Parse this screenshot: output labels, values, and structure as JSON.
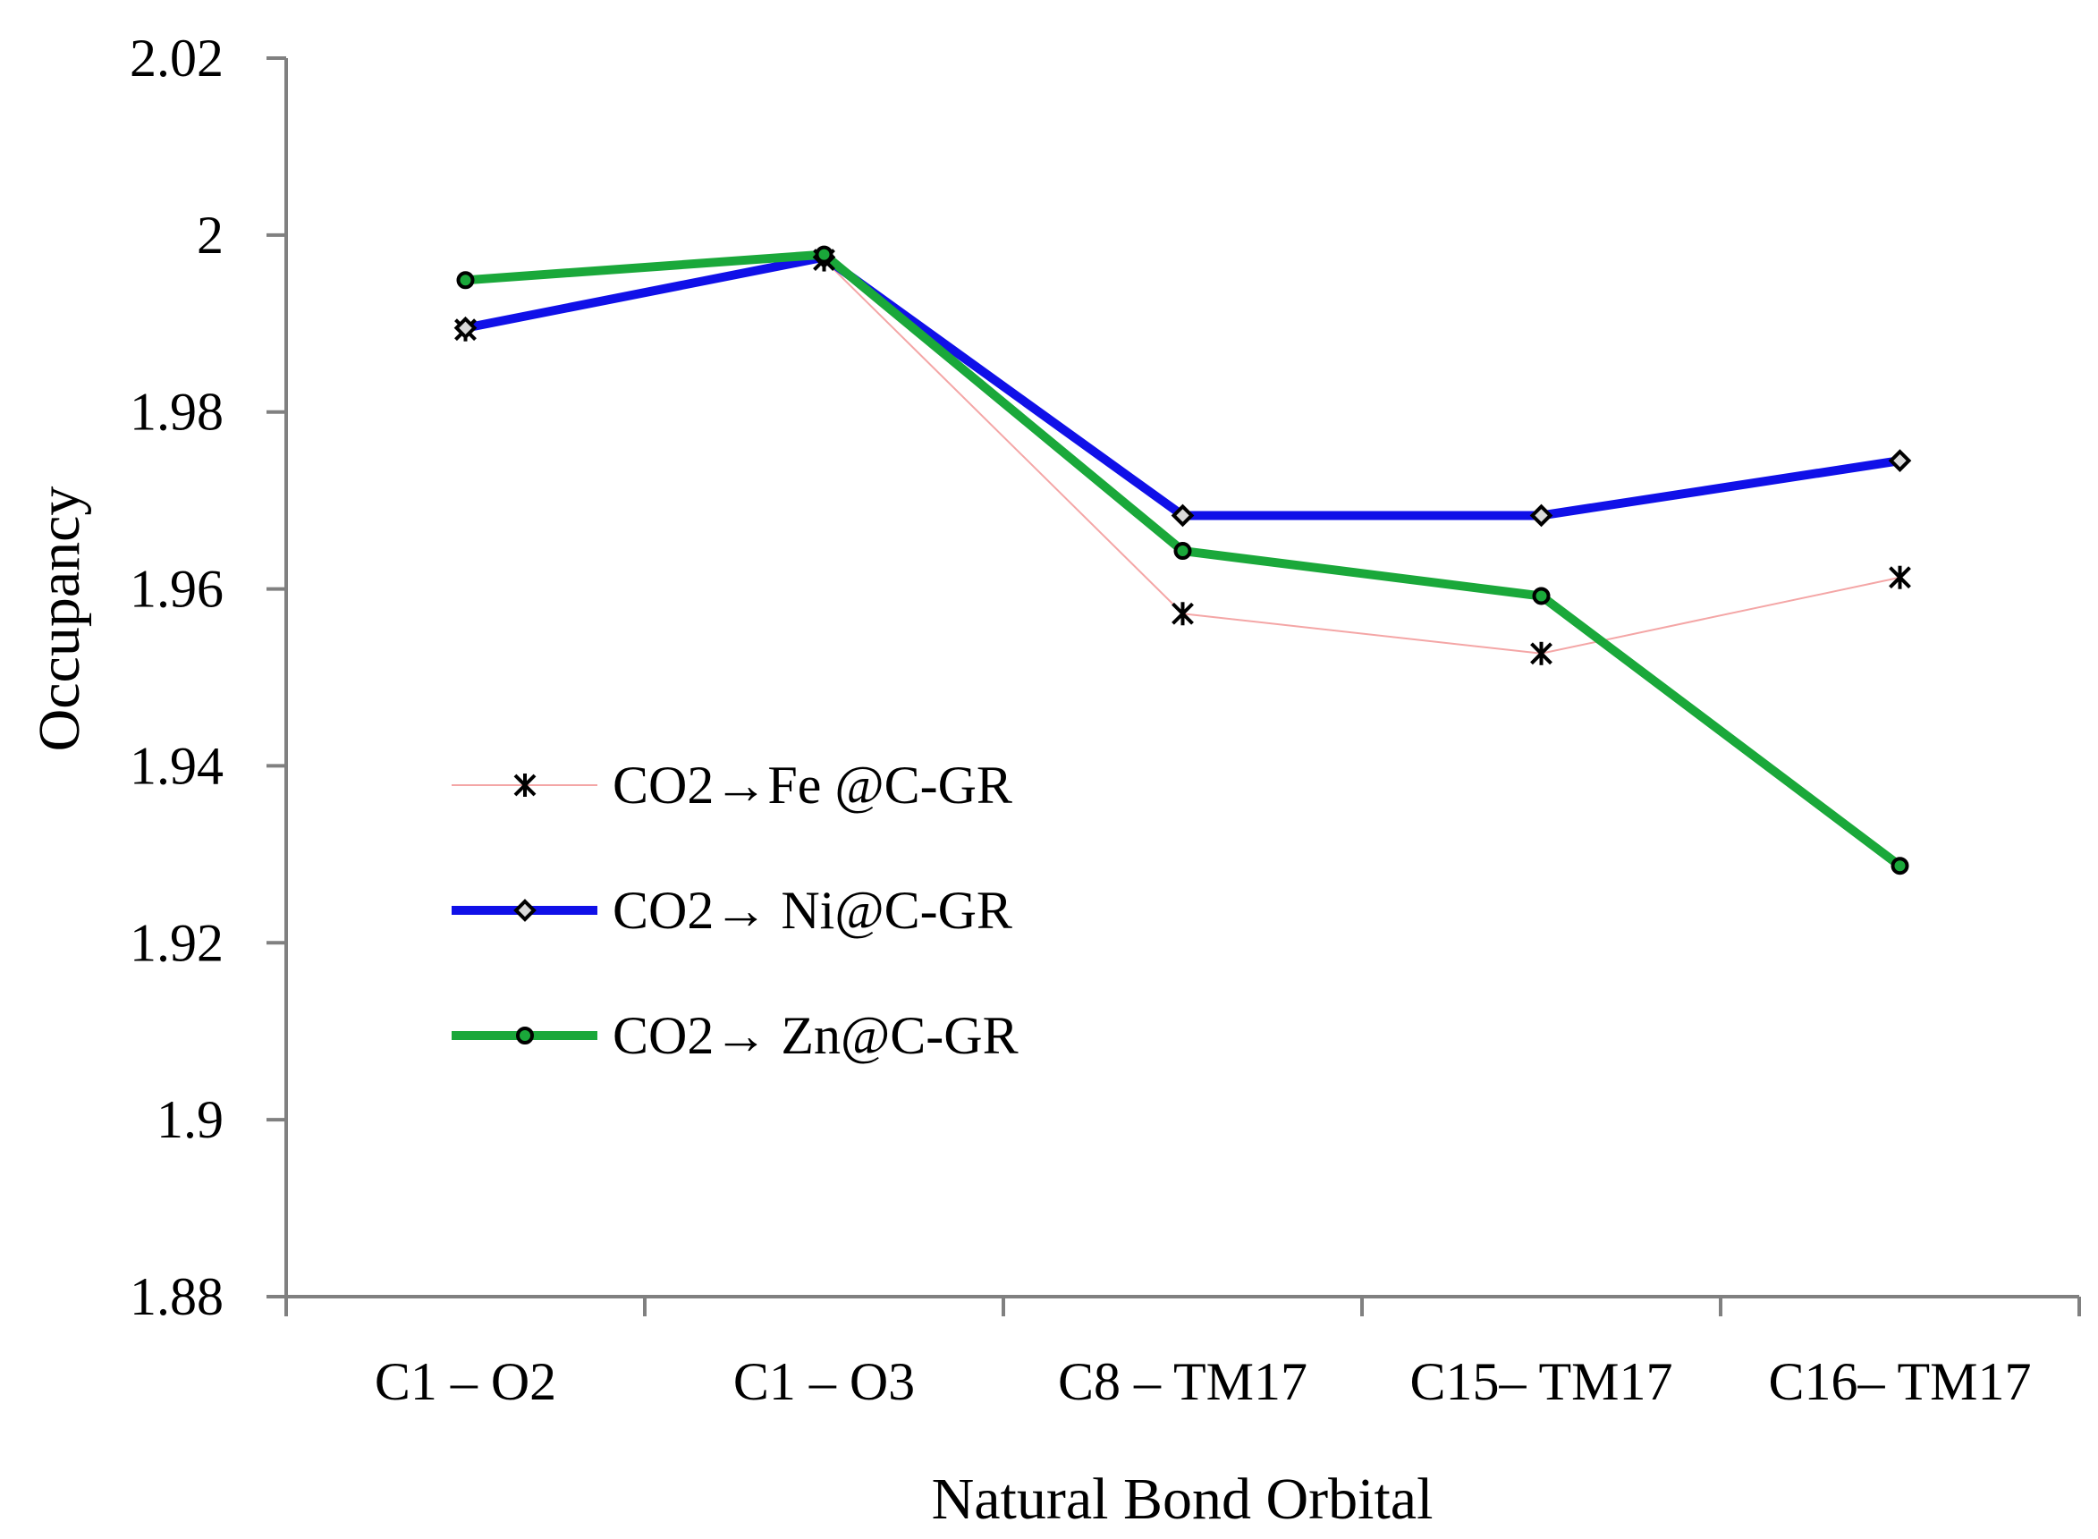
{
  "chart_data": {
    "type": "line",
    "title": "",
    "xlabel": "Natural Bond Orbital",
    "ylabel": "Occupancy",
    "categories": [
      "C1 – O2",
      "C1 – O3",
      "C8 – TM17",
      "C15– TM17",
      "C16– TM17"
    ],
    "ylim": [
      1.88,
      2.02
    ],
    "yticks": [
      "1.88",
      "1.9",
      "1.92",
      "1.94",
      "1.96",
      "1.98",
      "2",
      "2.02"
    ],
    "ytick_values": [
      1.88,
      1.9,
      1.92,
      1.94,
      1.96,
      1.98,
      2.0,
      2.02
    ],
    "grid": false,
    "legend_position": "left-center",
    "series": [
      {
        "name": "CO2→Fe @C-GR",
        "values": [
          1.9893,
          1.9972,
          1.9572,
          1.9527,
          1.9613
        ],
        "color": "#f4a6a6",
        "marker": "asterisk"
      },
      {
        "name": "CO2→ Ni@C-GR",
        "values": [
          1.9895,
          1.9975,
          1.9683,
          1.9683,
          1.9745
        ],
        "color": "#1010e8",
        "marker": "diamond"
      },
      {
        "name": "CO2→ Zn@C-GR",
        "values": [
          1.9949,
          1.9978,
          1.9643,
          1.9592,
          1.9287
        ],
        "color": "#1aa83a",
        "marker": "circle"
      }
    ]
  }
}
